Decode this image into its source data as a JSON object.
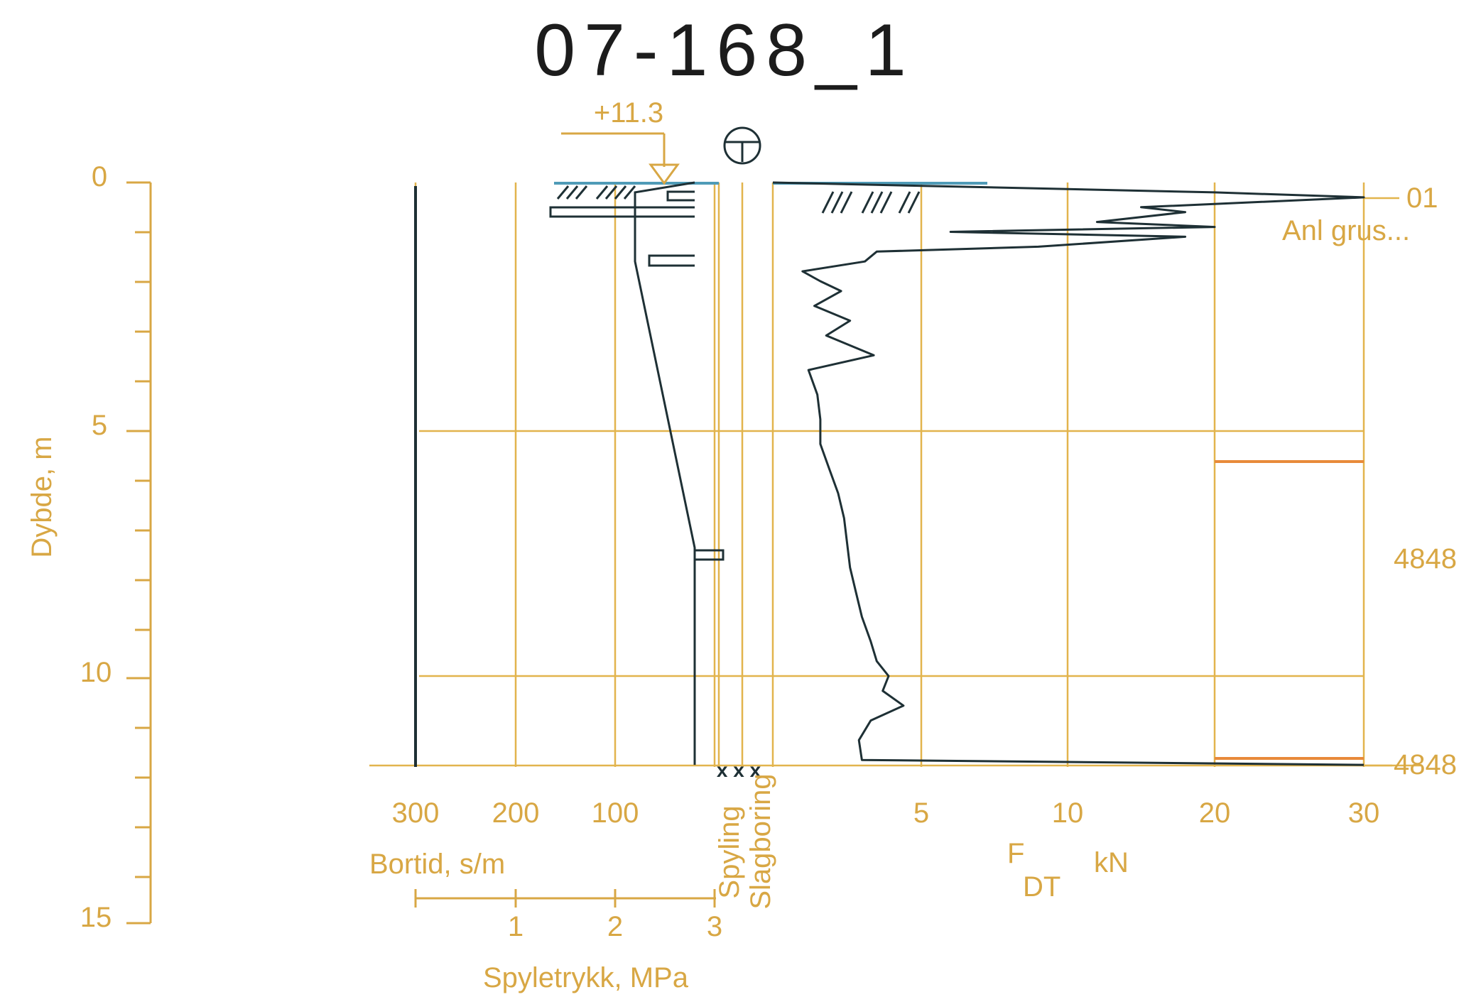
{
  "chart_data": {
    "type": "line",
    "title": "07-168_1",
    "level_marker": "+11.3",
    "depth_axis": {
      "label": "Dybde, m",
      "ticks": [
        "0",
        "5",
        "10",
        "15"
      ],
      "range": [
        0,
        15
      ]
    },
    "bortid_axis": {
      "label": "Bortid, s/m",
      "ticks": [
        "300",
        "200",
        "100"
      ]
    },
    "spyletrykk_axis": {
      "label": "Spyletrykk, MPa",
      "ticks": [
        "1",
        "2",
        "3"
      ]
    },
    "column_labels": [
      "Spyling",
      "Slagboring"
    ],
    "force_axis": {
      "label_main": "F",
      "label_sub": "DT",
      "unit": "kN",
      "ticks": [
        "5",
        "10",
        "20",
        "30"
      ]
    },
    "right_labels": [
      "01",
      "Anl grus...",
      "4848",
      "4848"
    ],
    "end_marks": "x x x",
    "total_depth_m": 11.8,
    "force_profile": [
      {
        "depth": 0.0,
        "force_kN": 0.0
      },
      {
        "depth": 0.2,
        "force_kN": 20.0
      },
      {
        "depth": 0.3,
        "force_kN": 30.0
      },
      {
        "depth": 0.5,
        "force_kN": 15.0
      },
      {
        "depth": 0.6,
        "force_kN": 18.0
      },
      {
        "depth": 0.8,
        "force_kN": 12.0
      },
      {
        "depth": 0.9,
        "force_kN": 20.0
      },
      {
        "depth": 1.0,
        "force_kN": 6.0
      },
      {
        "depth": 1.1,
        "force_kN": 18.0
      },
      {
        "depth": 1.3,
        "force_kN": 9.0
      },
      {
        "depth": 1.4,
        "force_kN": 3.5
      },
      {
        "depth": 1.6,
        "force_kN": 3.1
      },
      {
        "depth": 1.8,
        "force_kN": 1.0
      },
      {
        "depth": 2.0,
        "force_kN": 1.6
      },
      {
        "depth": 2.2,
        "force_kN": 2.3
      },
      {
        "depth": 2.5,
        "force_kN": 1.4
      },
      {
        "depth": 2.8,
        "force_kN": 2.6
      },
      {
        "depth": 3.1,
        "force_kN": 1.8
      },
      {
        "depth": 3.5,
        "force_kN": 3.4
      },
      {
        "depth": 3.8,
        "force_kN": 1.2
      },
      {
        "depth": 4.3,
        "force_kN": 1.5
      },
      {
        "depth": 4.8,
        "force_kN": 1.6
      },
      {
        "depth": 5.3,
        "force_kN": 1.6
      },
      {
        "depth": 5.8,
        "force_kN": 1.9
      },
      {
        "depth": 6.3,
        "force_kN": 2.2
      },
      {
        "depth": 6.8,
        "force_kN": 2.4
      },
      {
        "depth": 7.3,
        "force_kN": 2.5
      },
      {
        "depth": 7.8,
        "force_kN": 2.6
      },
      {
        "depth": 8.3,
        "force_kN": 2.8
      },
      {
        "depth": 8.8,
        "force_kN": 3.0
      },
      {
        "depth": 9.3,
        "force_kN": 3.3
      },
      {
        "depth": 9.7,
        "force_kN": 3.5
      },
      {
        "depth": 10.0,
        "force_kN": 3.9
      },
      {
        "depth": 10.3,
        "force_kN": 3.7
      },
      {
        "depth": 10.6,
        "force_kN": 4.4
      },
      {
        "depth": 10.9,
        "force_kN": 3.3
      },
      {
        "depth": 11.3,
        "force_kN": 2.9
      },
      {
        "depth": 11.7,
        "force_kN": 3.0
      },
      {
        "depth": 11.8,
        "force_kN": 30.0
      }
    ],
    "bortid_profile": [
      {
        "depth": 0.0,
        "s_per_m": 0
      },
      {
        "depth": 0.2,
        "s_per_m": 60
      },
      {
        "depth": 0.6,
        "s_per_m": 60
      },
      {
        "depth": 1.5,
        "s_per_m": 60
      },
      {
        "depth": 1.6,
        "s_per_m": 60
      },
      {
        "depth": 7.4,
        "s_per_m": 0
      },
      {
        "depth": 7.5,
        "s_per_m": 0
      },
      {
        "depth": 11.8,
        "s_per_m": 0
      }
    ],
    "colors": {
      "axis": "#d8a744",
      "curve": "#1e3035",
      "ground": "#4f9bb7",
      "marker": "#e88a3a"
    }
  }
}
